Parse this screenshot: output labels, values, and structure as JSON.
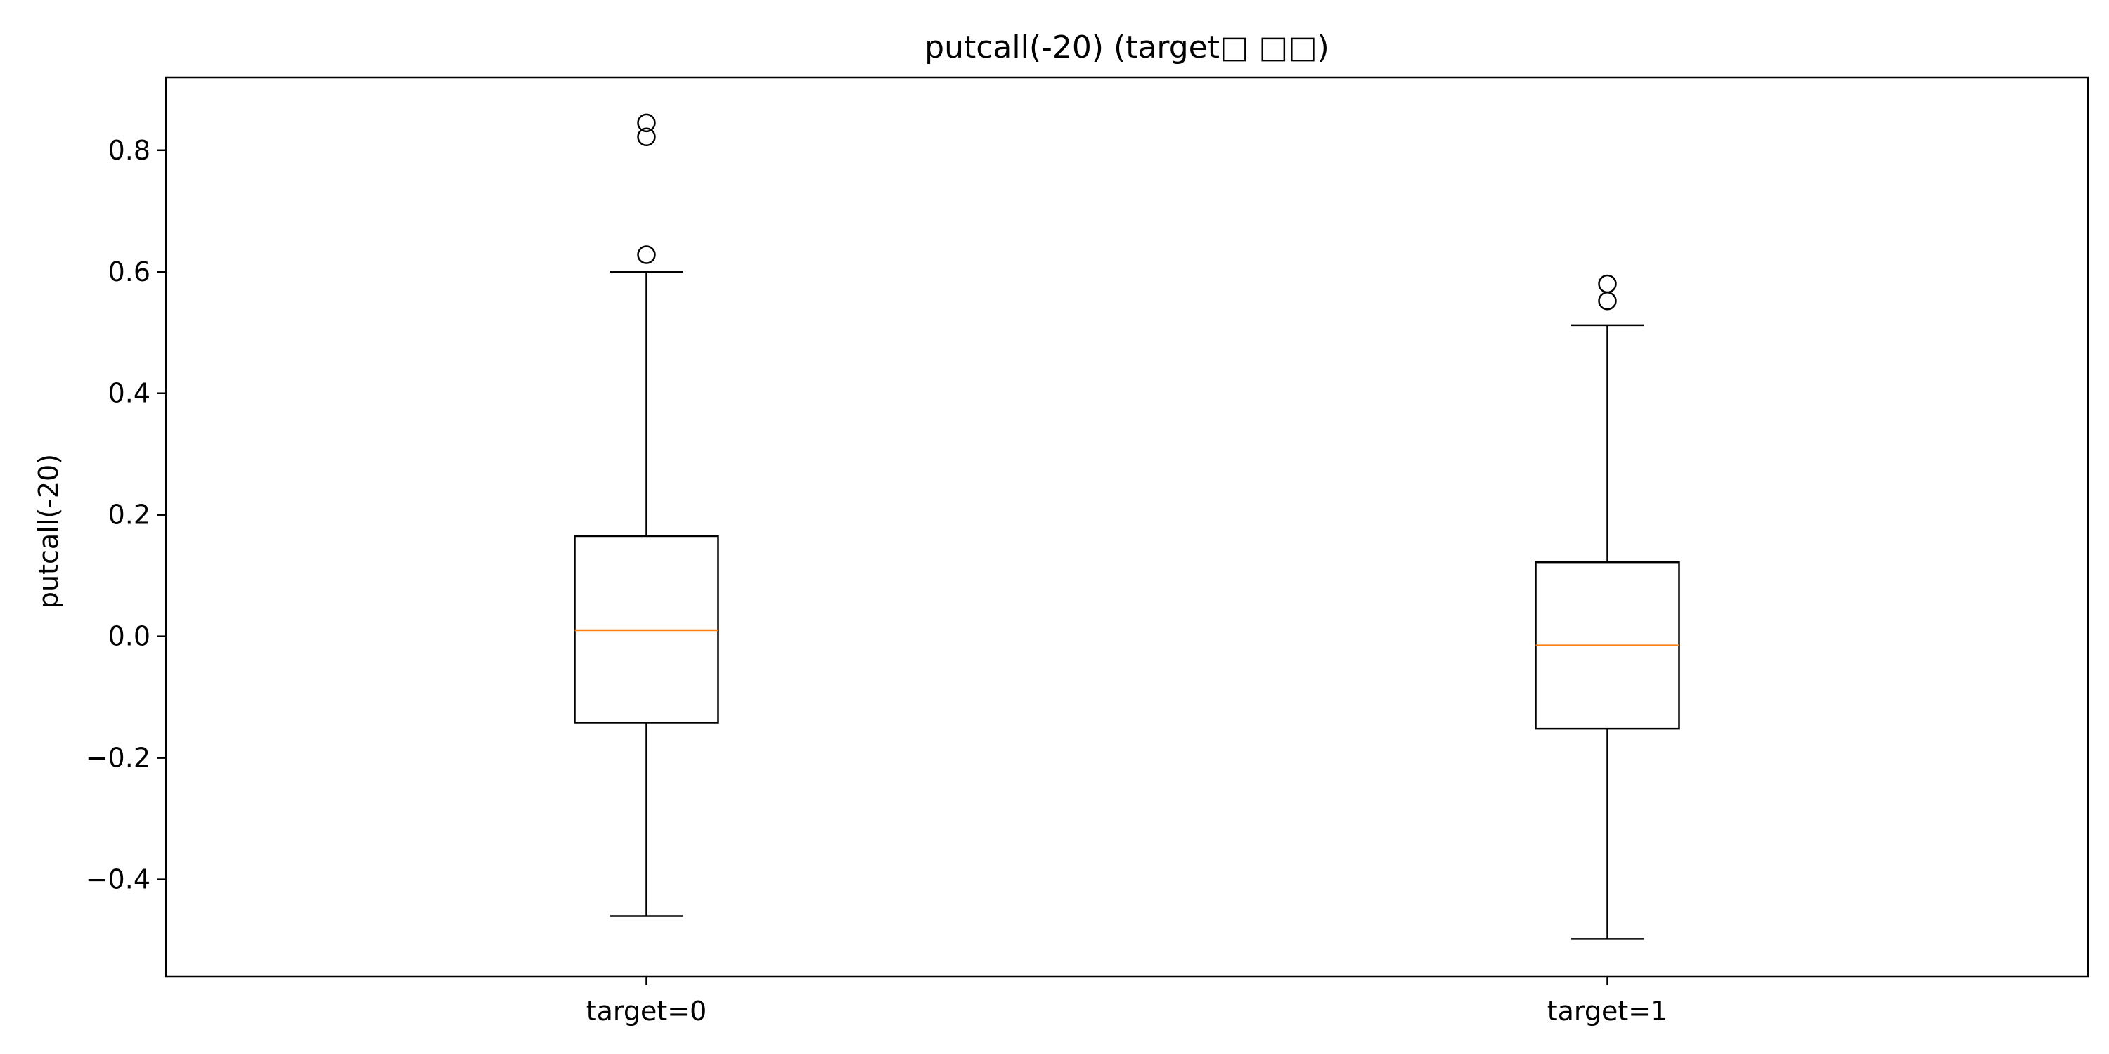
{
  "chart_data": {
    "type": "box",
    "title": "putcall(-20) (target□ □□)",
    "xlabel": "",
    "ylabel": "putcall(-20)",
    "ylim": [
      -0.56,
      0.92
    ],
    "yticks": [
      -0.4,
      -0.2,
      0.0,
      0.2,
      0.4,
      0.6,
      0.8
    ],
    "ytick_labels": [
      "−0.4",
      "−0.2",
      "0.0",
      "0.2",
      "0.4",
      "0.6",
      "0.8"
    ],
    "categories": [
      "target=0",
      "target=1"
    ],
    "grid": false,
    "boxes": [
      {
        "category": "target=0",
        "whisker_low": -0.46,
        "q1": -0.142,
        "median": 0.01,
        "q3": 0.165,
        "whisker_high": 0.6,
        "outliers": [
          0.845,
          0.822,
          0.628
        ]
      },
      {
        "category": "target=1",
        "whisker_low": -0.498,
        "q1": -0.152,
        "median": -0.015,
        "q3": 0.122,
        "whisker_high": 0.512,
        "outliers": [
          0.58,
          0.552
        ]
      }
    ],
    "colors": {
      "box": "#000000",
      "median": "#ff7f0e",
      "outlier": "#000000"
    }
  }
}
